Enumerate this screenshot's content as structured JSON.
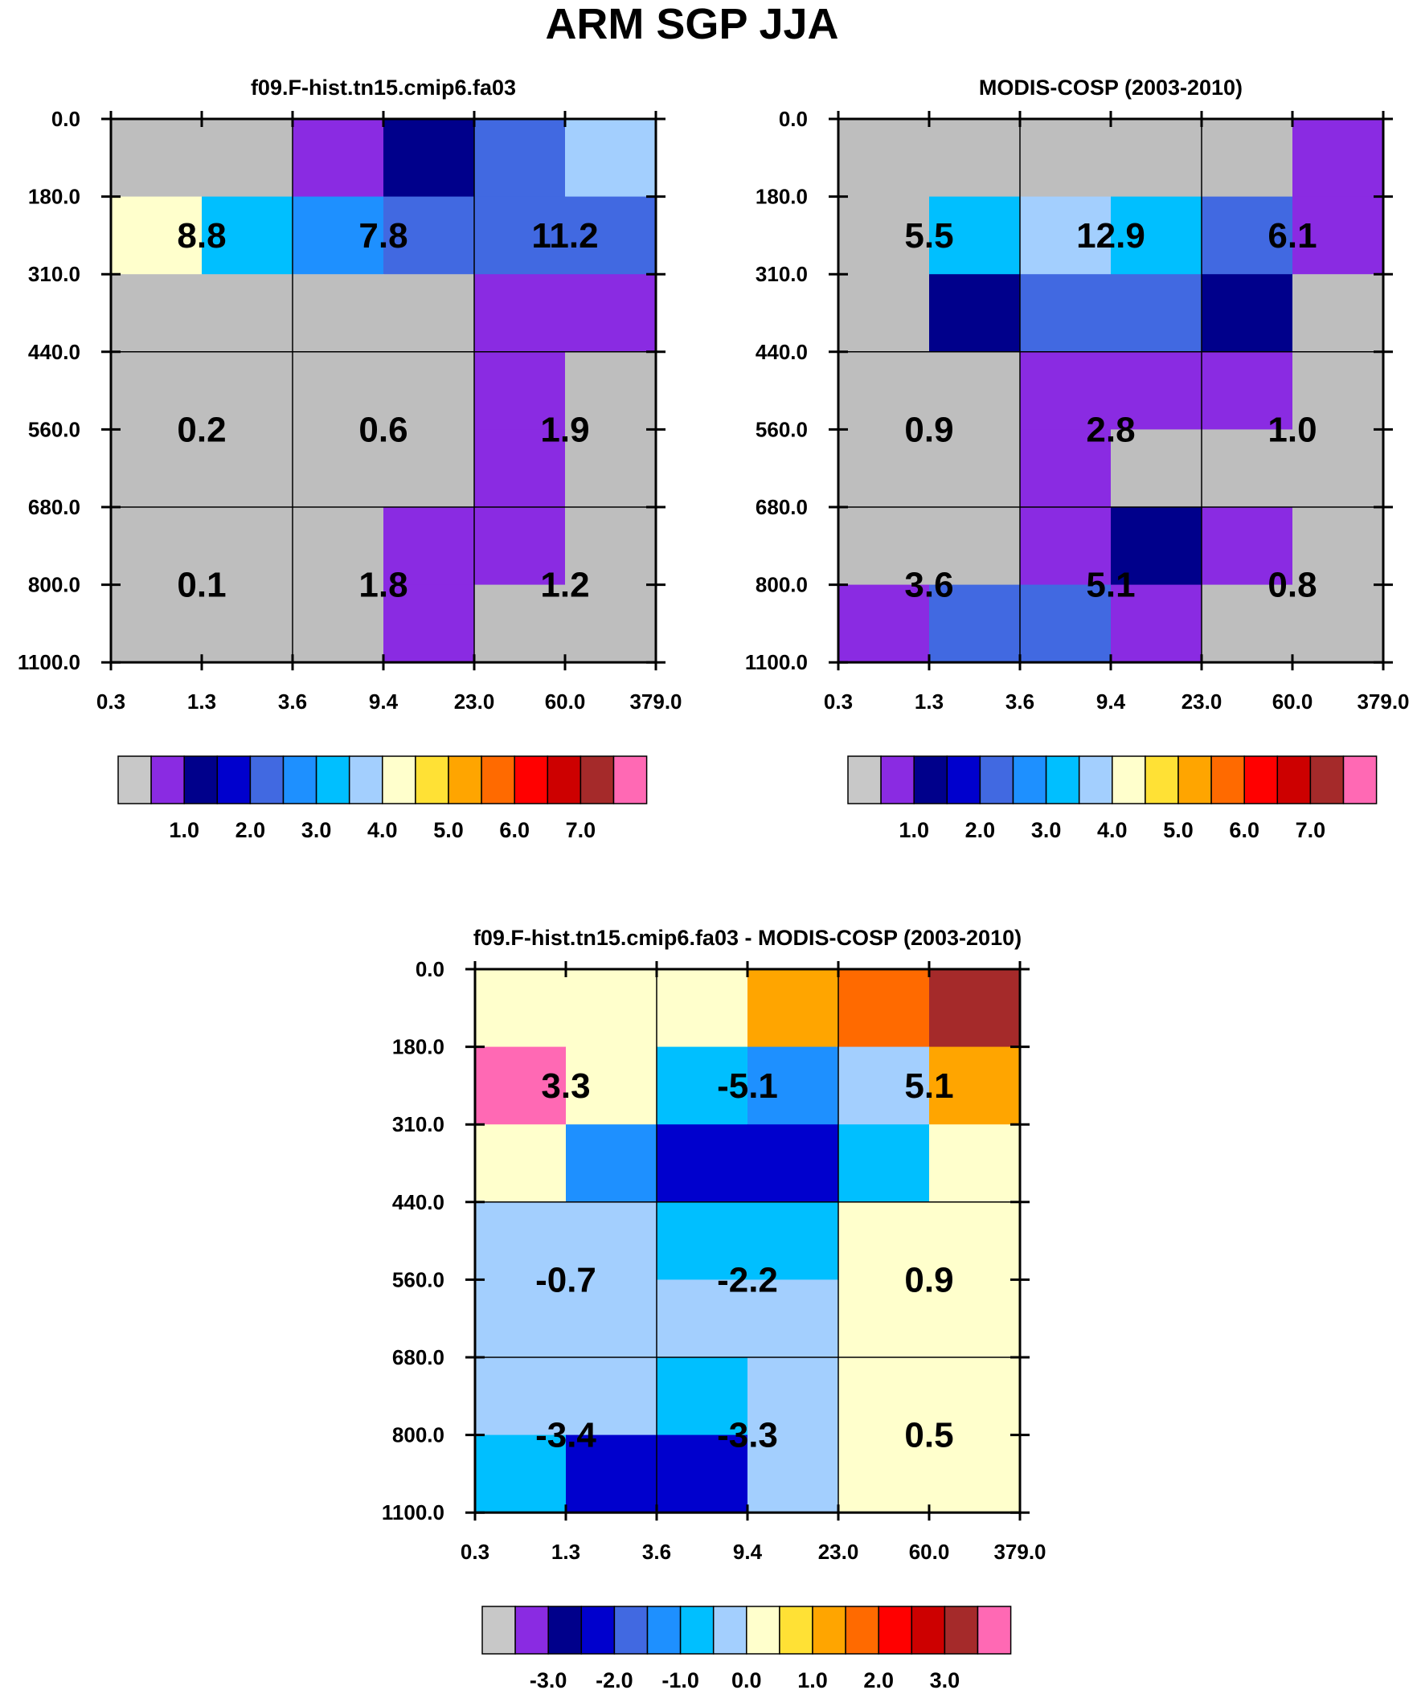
{
  "figure_title": "ARM SGP JJA",
  "chart_data": [
    {
      "type": "heatmap",
      "title": "f09.F-hist.tn15.cmip6.fa03",
      "x_ticks": [
        "0.3",
        "1.3",
        "3.6",
        "9.4",
        "23.0",
        "60.0",
        "379.0"
      ],
      "y_ticks": [
        "0.0",
        "180.0",
        "310.0",
        "440.0",
        "560.0",
        "680.0",
        "800.0",
        "1100.0"
      ],
      "cell_colors": [
        [
          "#bebebe",
          "#bebebe",
          "#8a2be2",
          "#00008b",
          "#4169e1",
          "#a3cffe"
        ],
        [
          "#ffffcc",
          "#00bfff",
          "#1e90ff",
          "#4169e1",
          "#4169e1",
          "#4169e1"
        ],
        [
          "#bebebe",
          "#bebebe",
          "#bebebe",
          "#bebebe",
          "#8a2be2",
          "#8a2be2"
        ],
        [
          "#bebebe",
          "#bebebe",
          "#bebebe",
          "#bebebe",
          "#8a2be2",
          "#bebebe"
        ],
        [
          "#bebebe",
          "#bebebe",
          "#bebebe",
          "#bebebe",
          "#8a2be2",
          "#bebebe"
        ],
        [
          "#bebebe",
          "#bebebe",
          "#bebebe",
          "#8a2be2",
          "#8a2be2",
          "#bebebe"
        ],
        [
          "#bebebe",
          "#bebebe",
          "#bebebe",
          "#8a2be2",
          "#bebebe",
          "#bebebe"
        ]
      ],
      "block_labels": [
        [
          "8.8",
          "7.8",
          "11.2"
        ],
        [
          "0.2",
          "0.6",
          "1.9"
        ],
        [
          "0.1",
          "1.8",
          "1.2"
        ]
      ],
      "colorbar": {
        "colors": [
          "#c8c8c8",
          "#8a2be2",
          "#00008b",
          "#0000cd",
          "#4169e1",
          "#1e90ff",
          "#00bfff",
          "#a3cffe",
          "#ffffcc",
          "#ffe135",
          "#ffa500",
          "#ff6a00",
          "#ff0000",
          "#cd0000",
          "#a52a2a",
          "#ff69b4"
        ],
        "labels": [
          "1.0",
          "2.0",
          "3.0",
          "4.0",
          "5.0",
          "6.0",
          "7.0"
        ],
        "label_boundaries": [
          2,
          4,
          6,
          8,
          10,
          12,
          14
        ]
      }
    },
    {
      "type": "heatmap",
      "title": "MODIS-COSP (2003-2010)",
      "x_ticks": [
        "0.3",
        "1.3",
        "3.6",
        "9.4",
        "23.0",
        "60.0",
        "379.0"
      ],
      "y_ticks": [
        "0.0",
        "180.0",
        "310.0",
        "440.0",
        "560.0",
        "680.0",
        "800.0",
        "1100.0"
      ],
      "cell_colors": [
        [
          "#bebebe",
          "#bebebe",
          "#bebebe",
          "#bebebe",
          "#bebebe",
          "#8a2be2"
        ],
        [
          "#bebebe",
          "#00bfff",
          "#a3cffe",
          "#00bfff",
          "#4169e1",
          "#8a2be2"
        ],
        [
          "#bebebe",
          "#00008b",
          "#4169e1",
          "#4169e1",
          "#00008b",
          "#bebebe"
        ],
        [
          "#bebebe",
          "#bebebe",
          "#8a2be2",
          "#8a2be2",
          "#8a2be2",
          "#bebebe"
        ],
        [
          "#bebebe",
          "#bebebe",
          "#8a2be2",
          "#bebebe",
          "#bebebe",
          "#bebebe"
        ],
        [
          "#bebebe",
          "#bebebe",
          "#8a2be2",
          "#00008b",
          "#8a2be2",
          "#bebebe"
        ],
        [
          "#8a2be2",
          "#4169e1",
          "#4169e1",
          "#8a2be2",
          "#bebebe",
          "#bebebe"
        ]
      ],
      "block_labels": [
        [
          "5.5",
          "12.9",
          "6.1"
        ],
        [
          "0.9",
          "2.8",
          "1.0"
        ],
        [
          "3.6",
          "5.1",
          "0.8"
        ]
      ],
      "colorbar": {
        "colors": [
          "#c8c8c8",
          "#8a2be2",
          "#00008b",
          "#0000cd",
          "#4169e1",
          "#1e90ff",
          "#00bfff",
          "#a3cffe",
          "#ffffcc",
          "#ffe135",
          "#ffa500",
          "#ff6a00",
          "#ff0000",
          "#cd0000",
          "#a52a2a",
          "#ff69b4"
        ],
        "labels": [
          "1.0",
          "2.0",
          "3.0",
          "4.0",
          "5.0",
          "6.0",
          "7.0"
        ],
        "label_boundaries": [
          2,
          4,
          6,
          8,
          10,
          12,
          14
        ]
      }
    },
    {
      "type": "heatmap",
      "title": "f09.F-hist.tn15.cmip6.fa03 - MODIS-COSP (2003-2010)",
      "x_ticks": [
        "0.3",
        "1.3",
        "3.6",
        "9.4",
        "23.0",
        "60.0",
        "379.0"
      ],
      "y_ticks": [
        "0.0",
        "180.0",
        "310.0",
        "440.0",
        "560.0",
        "680.0",
        "800.0",
        "1100.0"
      ],
      "cell_colors": [
        [
          "#ffffcc",
          "#ffffcc",
          "#ffffcc",
          "#ffa500",
          "#ff6a00",
          "#a52a2a"
        ],
        [
          "#ff69b4",
          "#ffffcc",
          "#00bfff",
          "#1e90ff",
          "#a3cffe",
          "#ffa500"
        ],
        [
          "#ffffcc",
          "#1e90ff",
          "#0000cd",
          "#0000cd",
          "#00bfff",
          "#ffffcc"
        ],
        [
          "#a3cffe",
          "#a3cffe",
          "#00bfff",
          "#00bfff",
          "#ffffcc",
          "#ffffcc"
        ],
        [
          "#a3cffe",
          "#a3cffe",
          "#a3cffe",
          "#a3cffe",
          "#ffffcc",
          "#ffffcc"
        ],
        [
          "#a3cffe",
          "#a3cffe",
          "#00bfff",
          "#a3cffe",
          "#ffffcc",
          "#ffffcc"
        ],
        [
          "#00bfff",
          "#0000cd",
          "#0000cd",
          "#a3cffe",
          "#ffffcc",
          "#ffffcc"
        ]
      ],
      "block_labels": [
        [
          "3.3",
          "-5.1",
          "5.1"
        ],
        [
          "-0.7",
          "-2.2",
          "0.9"
        ],
        [
          "-3.4",
          "-3.3",
          "0.5"
        ]
      ],
      "colorbar": {
        "colors": [
          "#c8c8c8",
          "#8a2be2",
          "#00008b",
          "#0000cd",
          "#4169e1",
          "#1e90ff",
          "#00bfff",
          "#a3cffe",
          "#ffffcc",
          "#ffe135",
          "#ffa500",
          "#ff6a00",
          "#ff0000",
          "#cd0000",
          "#a52a2a",
          "#ff69b4"
        ],
        "labels": [
          "-3.0",
          "-2.0",
          "-1.0",
          "0.0",
          "1.0",
          "2.0",
          "3.0"
        ],
        "label_boundaries": [
          2,
          4,
          6,
          8,
          10,
          12,
          14
        ]
      }
    }
  ]
}
